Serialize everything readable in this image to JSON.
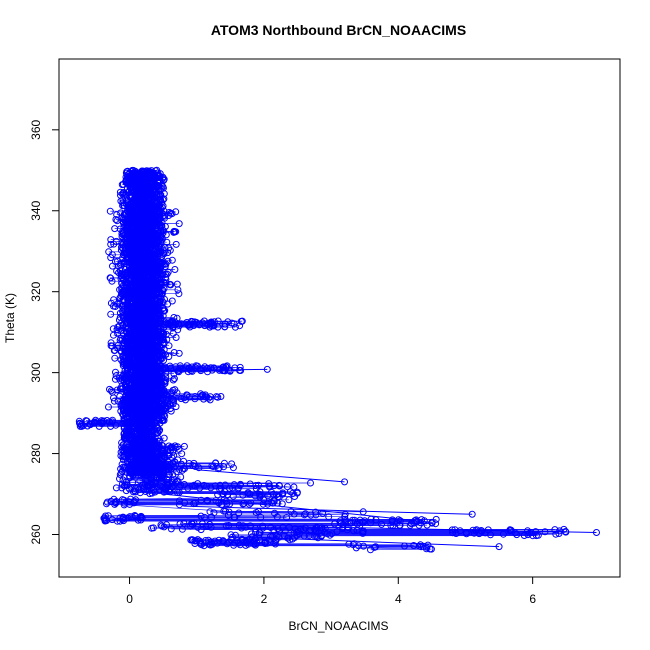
{
  "chart_data": {
    "type": "scatter",
    "title": "ATOM3 Northbound BrCN_NOAACIMS",
    "xlabel": "BrCN_NOAACIMS",
    "ylabel": "Theta (K)",
    "xlim": [
      -1.05,
      7.3
    ],
    "ylim": [
      249.5,
      377.5
    ],
    "xticks": [
      0,
      2,
      4,
      6
    ],
    "yticks": [
      260,
      280,
      300,
      320,
      340,
      360
    ],
    "marker": "open-circle",
    "connected": true,
    "colors": {
      "series": "#0000ff",
      "axis": "#000000",
      "background": "#ffffff"
    },
    "bands": [
      {
        "theta": [
          275,
          350
        ],
        "x": [
          -0.15,
          0.55
        ],
        "weight": 3200
      },
      {
        "theta": [
          290,
          340
        ],
        "x": [
          -0.35,
          0.75
        ],
        "weight": 900
      },
      {
        "theta": [
          270,
          282
        ],
        "x": [
          -0.25,
          0.9
        ],
        "weight": 250
      }
    ],
    "excursions": [
      {
        "theta": 312,
        "x": [
          0.5,
          1.7
        ],
        "n": 60
      },
      {
        "theta": 301,
        "x": [
          0.5,
          1.8
        ],
        "n": 50
      },
      {
        "theta": 294,
        "x": [
          0.5,
          1.4
        ],
        "n": 25
      },
      {
        "theta": 287.5,
        "x": [
          -0.75,
          -0.2
        ],
        "n": 30
      },
      {
        "theta": 277,
        "x": [
          0.4,
          1.6
        ],
        "n": 25
      },
      {
        "theta": 272,
        "x": [
          0.8,
          2.7
        ],
        "n": 35
      },
      {
        "theta": 270,
        "x": [
          1.3,
          2.5
        ],
        "n": 30
      },
      {
        "theta": 268,
        "x": [
          0.7,
          2.4
        ],
        "n": 30
      },
      {
        "theta": 265,
        "x": [
          1.0,
          3.5
        ],
        "n": 30
      },
      {
        "theta": 263,
        "x": [
          3.0,
          4.6
        ],
        "n": 45
      },
      {
        "theta": 262,
        "x": [
          0.0,
          2.0
        ],
        "n": 30
      },
      {
        "theta": 261,
        "x": [
          1.8,
          3.5
        ],
        "n": 40
      },
      {
        "theta": 260.5,
        "x": [
          4.8,
          6.5
        ],
        "n": 40
      },
      {
        "theta": 259.5,
        "x": [
          1.5,
          3.0
        ],
        "n": 30
      },
      {
        "theta": 258,
        "x": [
          0.9,
          2.2
        ],
        "n": 60
      },
      {
        "theta": 257,
        "x": [
          3.2,
          4.5
        ],
        "n": 20
      },
      {
        "theta": 264,
        "x": [
          -0.4,
          0.2
        ],
        "n": 30
      },
      {
        "theta": 268,
        "x": [
          -0.35,
          0.1
        ],
        "n": 20
      }
    ],
    "long_segments": [
      {
        "x": [
          0.9,
          6.95
        ],
        "y": [
          262.5,
          260.5
        ]
      },
      {
        "x": [
          1.5,
          5.5
        ],
        "y": [
          259.5,
          257.0
        ]
      },
      {
        "x": [
          0.8,
          5.1
        ],
        "y": [
          267.0,
          265.0
        ]
      },
      {
        "x": [
          0.5,
          4.5
        ],
        "y": [
          270.0,
          263.0
        ]
      },
      {
        "x": [
          0.3,
          2.05
        ],
        "y": [
          300.5,
          300.8
        ]
      },
      {
        "x": [
          1.0,
          3.2
        ],
        "y": [
          276.0,
          273.0
        ]
      }
    ]
  }
}
